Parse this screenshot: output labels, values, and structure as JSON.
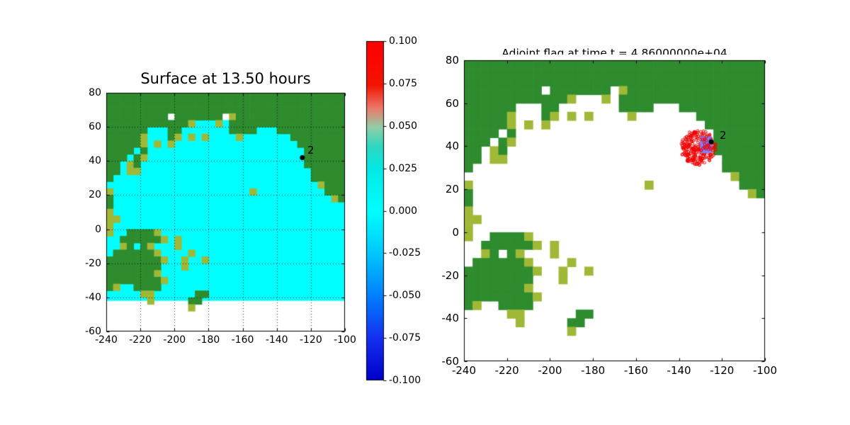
{
  "figure": {
    "background": "#ffffff"
  },
  "chart_data": [
    {
      "id": "surface-plot",
      "type": "heatmap",
      "title": "Surface at 13.50 hours",
      "xlabel": "",
      "ylabel": "",
      "xlim": [
        -240,
        -100
      ],
      "ylim": [
        -60,
        80
      ],
      "xticks": [
        -240,
        -220,
        -200,
        -180,
        -160,
        -140,
        -120,
        -100
      ],
      "yticks": [
        -60,
        -40,
        -20,
        0,
        20,
        40,
        60,
        80
      ],
      "grid": true,
      "ocean_value": 0.0,
      "ocean_color": "#00ffff",
      "ocean_lat_range": [
        -42,
        64
      ],
      "gauge": {
        "id": "2",
        "lon": -125.0,
        "lat": 42.0
      }
    },
    {
      "id": "adjoint-plot",
      "type": "heatmap",
      "title": "Adjoint flag at time t = 4.86000000e+04",
      "xlabel": "",
      "ylabel": "",
      "xlim": [
        -240,
        -100
      ],
      "ylim": [
        -60,
        80
      ],
      "xticks": [
        -240,
        -220,
        -200,
        -180,
        -160,
        -140,
        -120,
        -100
      ],
      "yticks": [
        -60,
        -40,
        -20,
        0,
        20,
        40,
        60,
        80
      ],
      "grid": false,
      "ocean_color": "#ffffff",
      "gauge": {
        "id": "2",
        "lon": -125.0,
        "lat": 42.0
      },
      "flag_patch": {
        "lon_min": -130.2,
        "lon_max": -124.6,
        "lat_min": 36.8,
        "lat_max": 44.6,
        "color": "#8080ff"
      },
      "scatter": {
        "color": "#f00000",
        "center_lon": -131.0,
        "center_lat": 39.5,
        "radius_deg": 8.3,
        "count": 290,
        "seed": 12
      }
    }
  ],
  "colorbar": {
    "vmin": -0.1,
    "vmax": 0.1,
    "tick_labels": [
      "0.100",
      "0.075",
      "0.050",
      "0.025",
      "0.000",
      "-0.025",
      "-0.050",
      "-0.075",
      "-0.100"
    ],
    "stops": [
      [
        0.0,
        "#ff0000"
      ],
      [
        0.13,
        "#f31400"
      ],
      [
        0.2,
        "#ea7d70"
      ],
      [
        0.255,
        "#8fcfa8"
      ],
      [
        0.31,
        "#2fd8c0"
      ],
      [
        0.375,
        "#04e8e4"
      ],
      [
        0.5,
        "#00ffff"
      ],
      [
        0.625,
        "#00c8ff"
      ],
      [
        0.75,
        "#0080ff"
      ],
      [
        0.875,
        "#1530f0"
      ],
      [
        1.0,
        "#0000c8"
      ]
    ]
  },
  "land_grid": {
    "lon0": -240,
    "lat0": 80,
    "cell_deg": 4,
    "legend": {
      ".": "ocean",
      "G": "land",
      "y": "land-mottled"
    },
    "colors": {
      "G": "#2e8b2e",
      "y": "#a0b838"
    },
    "rows": [
      "GGGGGGGGGGGGGGGGGGGGGGGGGGGGGGGGGGG",
      "GGGGGGGGGGGGGGGGGGGGGGGGGGGGGGGGGGG",
      "GGGGGGGGGGGGGGGGGGGGGGGGGGGGGGGGGGG",
      "GGGGGGGGG.GGGGGGG.yGGGGGGGGGGGGGGGG",
      "GGGGGGGGGGGGy...y.GGGGGGGGGGGGGGGGG",
      "GGGGGG...GG.......GGGG...GGGGGGGGGG",
      "GGGGGy...Gy.y.y....y.......GGGGGGGG",
      "GGGGGy.y.y..................GGGGGGG",
      "GGGG.G.......................GGGGGG",
      "GGG.Gy.......................GGGGGG",
      "GG.yG........................GGGGGG",
      "GG.yy.........................GGGGG",
      "G.............................GGGGG",
      "...............................yGGG",
      "y....................y..........GGG",
      "G................................yG",
      "G..................................",
      "y..................................",
      "yy.................................",
      "y..................................",
      "y..GGGGy...........................",
      "..GGGGGGy.y........................",
      "..yG.Gy...y........................",
      ".GGGGGGy....y......................",
      "GGGGGGGGy..y..y....................",
      "GGGGGGGG...y.......................",
      "GGGGGGGy...........................",
      "GGGGGGGGy..........................",
      "Gy..GGGG...........................",
      ".....yy......GG....................",
      "......y.....GG.....................",
      "............y......................",
      "...................................",
      "...................................",
      "..................................."
    ]
  }
}
